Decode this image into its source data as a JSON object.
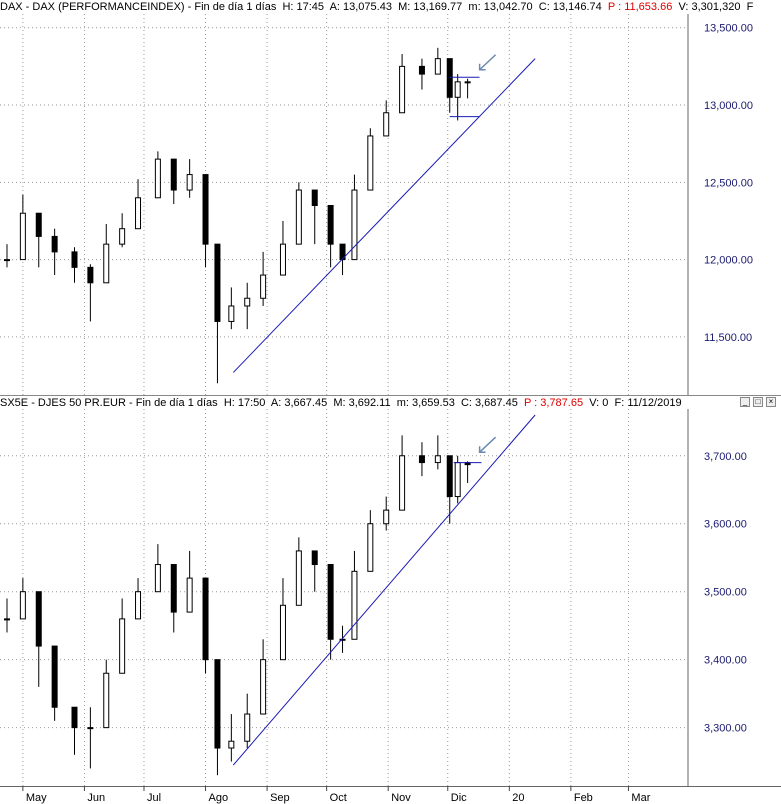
{
  "charts": [
    {
      "header": {
        "symbol": "DAX",
        "name": "DAX (PERFORMANCEINDEX)",
        "interval": "Fin de día 1 días",
        "time": "H: 17:45",
        "open": "A: 13,075.43",
        "high": "M: 13,169.77",
        "low": "m: 13,042.70",
        "close": "C: 13,146.74",
        "p": "P : 11,653.66",
        "v": "V: 3,301,320",
        "f": "F"
      },
      "y_ticks": [
        "11,500.00",
        "12,000.00",
        "12,500.00",
        "13,000.00",
        "13,500.00"
      ]
    },
    {
      "header": {
        "symbol": "SX5E",
        "name": "DJES 50 PR.EUR",
        "interval": "Fin de día 1 días",
        "time": "H: 17:50",
        "open": "A: 3,667.45",
        "high": "M: 3,692.11",
        "low": "m: 3,659.53",
        "close": "C: 3,687.45",
        "p": "P : 3,787.65",
        "v": "V: 0",
        "f": "F: 11/12/2019"
      },
      "y_ticks": [
        "3,300.00",
        "3,400.00",
        "3,500.00",
        "3,600.00",
        "3,700.00"
      ]
    }
  ],
  "x_ticks": [
    "May",
    "Jun",
    "Jul",
    "Ago",
    "Sep",
    "Oct",
    "Nov",
    "Dic",
    "20",
    "Feb",
    "Mar"
  ],
  "colors": {
    "trendline": "#1a1ab8",
    "axis_text": "#1a1a70",
    "grid": "#9a9a9a",
    "candle": "#000000",
    "header_p": "#e00000"
  },
  "chart_data": [
    {
      "type": "candlestick",
      "title": "DAX - DAX (PERFORMANCEINDEX) - Fin de día 1 días",
      "ylim": [
        11150,
        13550
      ],
      "y_ticks": [
        11500,
        12000,
        12500,
        13000,
        13500
      ],
      "grid": true,
      "x": [
        "2019-04-23",
        "2019-05-01",
        "2019-05-09",
        "2019-05-17",
        "2019-05-27",
        "2019-06-04",
        "2019-06-12",
        "2019-06-20",
        "2019-06-28",
        "2019-07-08",
        "2019-07-16",
        "2019-07-24",
        "2019-08-01",
        "2019-08-07",
        "2019-08-14",
        "2019-08-22",
        "2019-08-30",
        "2019-09-09",
        "2019-09-17",
        "2019-09-25",
        "2019-10-03",
        "2019-10-09",
        "2019-10-15",
        "2019-10-23",
        "2019-10-31",
        "2019-11-08",
        "2019-11-18",
        "2019-11-26",
        "2019-12-02",
        "2019-12-06",
        "2019-12-11"
      ],
      "close": [
        12000,
        12300,
        12150,
        12050,
        11950,
        11850,
        12100,
        12200,
        12400,
        12650,
        12450,
        12550,
        12100,
        11600,
        11700,
        11750,
        11900,
        12100,
        12450,
        12350,
        12100,
        12000,
        12450,
        12800,
        12950,
        13250,
        13200,
        13300,
        13050,
        13150,
        13147
      ],
      "high": [
        12100,
        12420,
        12250,
        12200,
        12080,
        11970,
        12230,
        12300,
        12520,
        12700,
        12560,
        12650,
        12250,
        11900,
        11820,
        11850,
        12050,
        12250,
        12500,
        12450,
        12200,
        12100,
        12550,
        12850,
        13030,
        13330,
        13300,
        13370,
        13180,
        13200,
        13170
      ],
      "low": [
        11950,
        12150,
        11950,
        11900,
        11850,
        11600,
        11950,
        12080,
        12260,
        12500,
        12360,
        12400,
        11950,
        11200,
        11550,
        11550,
        11700,
        11900,
        12300,
        12100,
        11950,
        11900,
        12300,
        12700,
        12850,
        13150,
        13100,
        13200,
        12950,
        12900,
        13043
      ],
      "trendlines": [
        {
          "from": [
            "2019-08-15",
            11270
          ],
          "to": [
            "2020-01-14",
            13300
          ]
        },
        {
          "from": [
            "2019-12-02",
            13180
          ],
          "to": [
            "2019-12-17",
            13180
          ]
        },
        {
          "from": [
            "2019-12-02",
            12925
          ],
          "to": [
            "2019-12-17",
            12925
          ]
        }
      ]
    },
    {
      "type": "candlestick",
      "title": "SX5E - DJES 50 PR.EUR - Fin de día 1 días",
      "ylim": [
        3220,
        3760
      ],
      "y_ticks": [
        3300,
        3400,
        3500,
        3600,
        3700
      ],
      "grid": true,
      "x": [
        "2019-04-23",
        "2019-05-01",
        "2019-05-09",
        "2019-05-17",
        "2019-05-27",
        "2019-06-04",
        "2019-06-12",
        "2019-06-20",
        "2019-06-28",
        "2019-07-08",
        "2019-07-16",
        "2019-07-24",
        "2019-08-01",
        "2019-08-07",
        "2019-08-14",
        "2019-08-22",
        "2019-08-30",
        "2019-09-09",
        "2019-09-17",
        "2019-09-25",
        "2019-10-03",
        "2019-10-09",
        "2019-10-15",
        "2019-10-23",
        "2019-10-31",
        "2019-11-08",
        "2019-11-18",
        "2019-11-26",
        "2019-12-02",
        "2019-12-06",
        "2019-12-11"
      ],
      "close": [
        3460,
        3500,
        3420,
        3330,
        3300,
        3300,
        3380,
        3460,
        3500,
        3540,
        3470,
        3520,
        3400,
        3270,
        3280,
        3320,
        3400,
        3480,
        3560,
        3540,
        3430,
        3430,
        3530,
        3600,
        3620,
        3700,
        3690,
        3700,
        3640,
        3690,
        3687
      ],
      "high": [
        3490,
        3520,
        3440,
        3380,
        3330,
        3330,
        3400,
        3490,
        3520,
        3570,
        3500,
        3560,
        3460,
        3300,
        3320,
        3350,
        3430,
        3520,
        3580,
        3560,
        3450,
        3450,
        3560,
        3620,
        3640,
        3730,
        3720,
        3730,
        3700,
        3700,
        3692
      ],
      "low": [
        3440,
        3460,
        3360,
        3310,
        3260,
        3240,
        3340,
        3440,
        3470,
        3500,
        3440,
        3470,
        3380,
        3230,
        3250,
        3270,
        3350,
        3440,
        3520,
        3500,
        3400,
        3410,
        3510,
        3580,
        3590,
        3680,
        3670,
        3680,
        3600,
        3630,
        3660
      ],
      "trendlines": [
        {
          "from": [
            "2019-08-15",
            3245
          ],
          "to": [
            "2020-01-14",
            3760
          ]
        },
        {
          "from": [
            "2019-12-04",
            3690
          ],
          "to": [
            "2019-12-18",
            3690
          ]
        }
      ]
    }
  ]
}
